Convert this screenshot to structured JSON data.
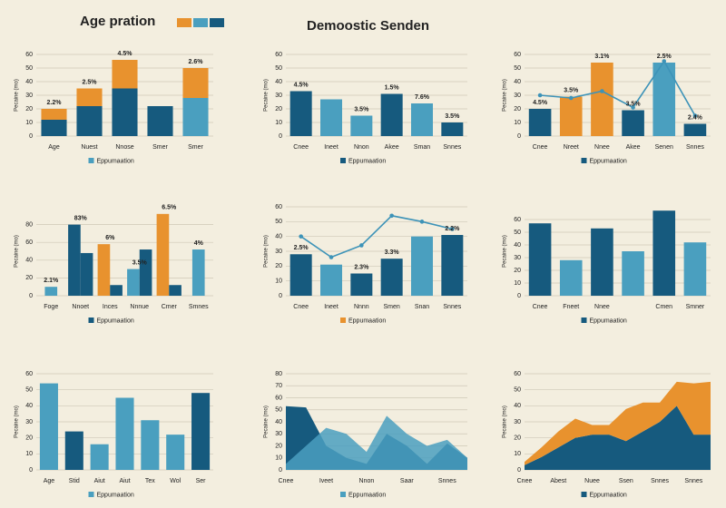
{
  "header": {
    "left": "Age pration",
    "center": "Demoostic Senden",
    "swatches": [
      "#e8922e",
      "#4a9fbf",
      "#165a7e"
    ]
  },
  "chart_data": [
    {
      "type": "bar",
      "ylabel": "Pecaine (mo)",
      "categories": [
        "Age",
        "Nuest",
        "Nnose",
        "Smer",
        "Smer"
      ],
      "series": [
        {
          "colors": [
            "#165a7e",
            "#165a7e",
            "#165a7e",
            "#165a7e",
            "#4a9fbf"
          ],
          "values": [
            12,
            22,
            35,
            22,
            28
          ]
        },
        {
          "color": "#e8922e",
          "values": [
            8,
            13,
            21,
            0,
            22
          ]
        }
      ],
      "annotations": [
        "2.2%",
        "2.5%",
        "4.5%",
        null,
        "2.6%"
      ],
      "ylim": [
        0,
        60
      ],
      "yticks": [
        0,
        10,
        20,
        30,
        40,
        50,
        60
      ],
      "legend": {
        "name": "Eppumaation",
        "color": "#4a9fbf"
      }
    },
    {
      "type": "bar",
      "ylabel": "Pecaine (mo)",
      "categories": [
        "Cnee",
        "Ineet",
        "Nnon",
        "Akee",
        "Sman",
        "Snnes"
      ],
      "series": [
        {
          "colors": [
            "#165a7e",
            "#4a9fbf",
            "#4a9fbf",
            "#165a7e",
            "#4a9fbf",
            "#165a7e"
          ],
          "values": [
            33,
            27,
            15,
            31,
            24,
            10
          ]
        }
      ],
      "annotations": [
        "4.5%",
        null,
        "3.5%",
        "1.5%",
        "7.6%",
        "3.5%"
      ],
      "ylim": [
        0,
        60
      ],
      "yticks": [
        0,
        10,
        20,
        30,
        40,
        50,
        60
      ],
      "legend": {
        "name": "Eppumaation",
        "color": "#165a7e"
      }
    },
    {
      "type": "bar_line",
      "ylabel": "Pecaine (mo)",
      "categories": [
        "Cnee",
        "Nreet",
        "Nnee",
        "Akee",
        "Senen",
        "Snnes"
      ],
      "series": [
        {
          "colors": [
            "#165a7e",
            "#e8922e",
            "#e8922e",
            "#165a7e",
            "#4a9fbf",
            "#165a7e"
          ],
          "values": [
            20,
            29,
            54,
            19,
            54,
            9
          ]
        }
      ],
      "line": {
        "color": "#3d93b8",
        "values": [
          30,
          28,
          33,
          21,
          55,
          15
        ]
      },
      "annotations": [
        "4.5%",
        "3.5%",
        "3.1%",
        "3.5%",
        "2.5%",
        "2.4%"
      ],
      "ylim": [
        0,
        60
      ],
      "yticks": [
        0,
        10,
        20,
        30,
        40,
        50,
        60
      ],
      "legend": {
        "name": "Eppumaation",
        "color": "#165a7e"
      }
    },
    {
      "type": "bar_grouped",
      "ylabel": "Pecaine (mo)",
      "categories": [
        "Foge",
        "Nnoet",
        "Inces",
        "Nnnue",
        "Cmer",
        "Smnes"
      ],
      "series": [
        {
          "colors": [
            "#4a9fbf",
            "#165a7e",
            "#e8922e",
            "#4a9fbf",
            "#e8922e",
            "#4a9fbf"
          ],
          "values": [
            10,
            80,
            58,
            30,
            92,
            52
          ]
        },
        {
          "color": "#165a7e",
          "values": [
            null,
            48,
            12,
            52,
            12,
            null
          ]
        }
      ],
      "annotations": [
        "2.1%",
        "83%",
        "6%",
        "3.5%",
        "6.5%",
        "4%"
      ],
      "ylim": [
        0,
        100
      ],
      "yticks": [
        0,
        20,
        40,
        60,
        80
      ],
      "legend": {
        "name": "Eppumaation",
        "color": "#165a7e"
      }
    },
    {
      "type": "bar_line",
      "ylabel": "Pecaine (mo)",
      "categories": [
        "Cnee",
        "Ineet",
        "Nnnn",
        "Smen",
        "Snan",
        "Snnes"
      ],
      "series": [
        {
          "colors": [
            "#165a7e",
            "#4a9fbf",
            "#165a7e",
            "#165a7e",
            "#4a9fbf",
            "#165a7e"
          ],
          "values": [
            28,
            21,
            15,
            25,
            40,
            41
          ]
        }
      ],
      "line": {
        "color": "#3d93b8",
        "values": [
          40,
          26,
          34,
          54,
          50,
          45
        ]
      },
      "annotations": [
        "2.5%",
        null,
        "2.3%",
        "3.3%",
        null,
        "2.2%"
      ],
      "ylim": [
        0,
        60
      ],
      "yticks": [
        0,
        10,
        20,
        30,
        40,
        50,
        60
      ],
      "legend": {
        "name": "Eppumaation",
        "color": "#e8922e"
      }
    },
    {
      "type": "bar",
      "ylabel": "Pecaine (mo)",
      "categories": [
        "Cnee",
        "Fneet",
        "Nnee",
        null,
        "Cmen",
        "Smner"
      ],
      "series": [
        {
          "colors": [
            "#165a7e",
            "#4a9fbf",
            "#165a7e",
            "#4a9fbf",
            "#165a7e",
            "#4a9fbf"
          ],
          "values": [
            57,
            28,
            53,
            35,
            67,
            42
          ]
        }
      ],
      "ylim": [
        0,
        70
      ],
      "yticks": [
        0,
        10,
        20,
        30,
        40,
        50,
        60
      ],
      "legend": {
        "name": "Eppumaation",
        "color": "#165a7e"
      }
    },
    {
      "type": "bar",
      "ylabel": "Pecaine (mo)",
      "categories": [
        "Age",
        "Stid",
        "Aiut",
        "Aiut",
        "Tex",
        "Wol",
        "Ser"
      ],
      "series": [
        {
          "colors": [
            "#4a9fbf",
            "#165a7e",
            "#4a9fbf",
            "#4a9fbf",
            "#4a9fbf",
            "#4a9fbf",
            "#165a7e"
          ],
          "values": [
            54,
            24,
            16,
            45,
            31,
            22,
            48
          ]
        }
      ],
      "ylim": [
        0,
        60
      ],
      "yticks": [
        0,
        10,
        20,
        30,
        40,
        50,
        60
      ],
      "legend": {
        "name": "Eppumaation",
        "color": "#4a9fbf"
      }
    },
    {
      "type": "area",
      "ylabel": "Pecaine (mo)",
      "categories": [
        "Cnee",
        null,
        "Iveet",
        null,
        "Nnon",
        null,
        "Saar",
        null,
        "Snnes",
        null
      ],
      "series": [
        {
          "color": "#165a7e",
          "values": [
            53,
            52,
            20,
            10,
            5,
            30,
            20,
            5,
            22,
            10
          ]
        },
        {
          "color": "#4a9fbf",
          "values": [
            5,
            20,
            35,
            30,
            15,
            45,
            30,
            20,
            25,
            10
          ]
        }
      ],
      "ylim": [
        0,
        80
      ],
      "yticks": [
        0,
        10,
        20,
        30,
        40,
        50,
        60,
        70,
        80
      ],
      "legend": {
        "name": "Eppumaation",
        "color": "#4a9fbf"
      }
    },
    {
      "type": "area_stacked",
      "ylabel": "Pecaine (mo)",
      "categories": [
        "Cnee",
        null,
        "Abest",
        null,
        "Nuee",
        null,
        "Ssen",
        null,
        "Snnes",
        null,
        "Snnes",
        null
      ],
      "series": [
        {
          "color": "#165a7e",
          "values": [
            3,
            8,
            14,
            20,
            22,
            22,
            18,
            24,
            30,
            40,
            22,
            22
          ]
        },
        {
          "color": "#e8922e",
          "values": [
            2,
            6,
            10,
            12,
            6,
            6,
            20,
            18,
            12,
            15,
            32,
            33
          ]
        }
      ],
      "ylim": [
        0,
        60
      ],
      "yticks": [
        0,
        10,
        20,
        30,
        40,
        50,
        60
      ],
      "legend": {
        "name": "Eppumaation",
        "color": "#165a7e"
      }
    }
  ]
}
